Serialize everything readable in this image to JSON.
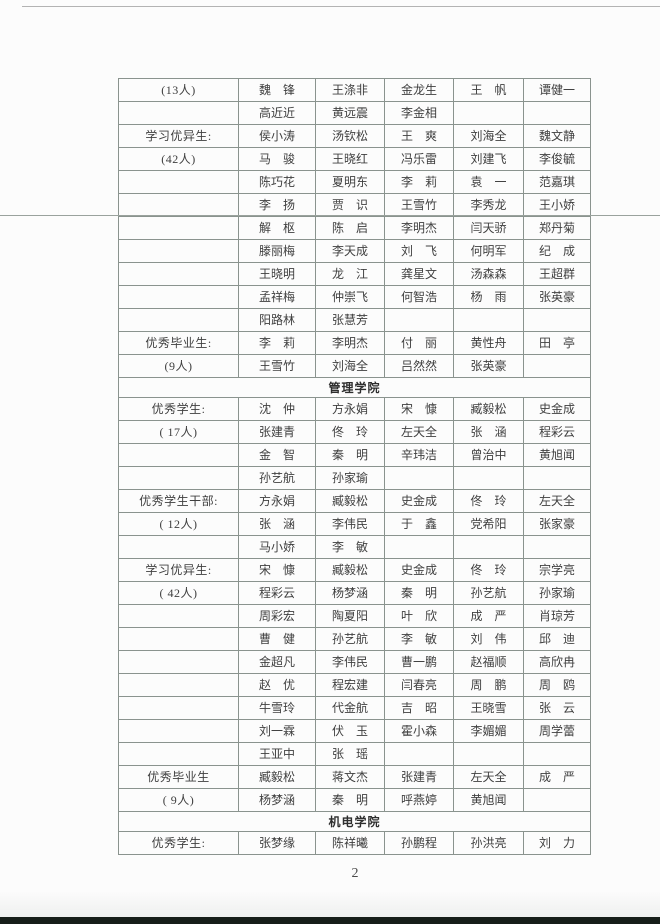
{
  "page": {
    "number": "2"
  },
  "colors": {
    "page_bg": "#fcfcfc",
    "table_border": "#8a938e",
    "text": "#3f3f3f",
    "section_text": "#2e2e2e",
    "artifact_dark": "#161d19"
  },
  "table": {
    "rows": [
      {
        "type": "names",
        "label": "(13人)",
        "cells": [
          "魏　锋",
          "王涤非",
          "金龙生",
          "王　帆",
          "谭健一"
        ]
      },
      {
        "type": "names",
        "label": "",
        "cells": [
          "高近近",
          "黄远震",
          "李金相",
          "",
          ""
        ]
      },
      {
        "type": "names",
        "label": "学习优异生:",
        "cells": [
          "侯小涛",
          "汤钦松",
          "王　爽",
          "刘海全",
          "魏文静"
        ]
      },
      {
        "type": "names",
        "label": "(42人)",
        "cells": [
          "马　骏",
          "王晓红",
          "冯乐雷",
          "刘建飞",
          "李俊毓"
        ]
      },
      {
        "type": "names",
        "label": "",
        "cells": [
          "陈巧花",
          "夏明东",
          "李　莉",
          "袁　一",
          "范嘉琪"
        ]
      },
      {
        "type": "names",
        "label": "",
        "cells": [
          "李　扬",
          "贾　识",
          "王雪竹",
          "李秀龙",
          "王小娇"
        ]
      },
      {
        "type": "names",
        "label": "",
        "cells": [
          "解　枢",
          "陈　启",
          "李明杰",
          "闫天骄",
          "郑丹菊"
        ]
      },
      {
        "type": "names",
        "label": "",
        "cells": [
          "滕丽梅",
          "李天成",
          "刘　飞",
          "何明军",
          "纪　成"
        ]
      },
      {
        "type": "names",
        "label": "",
        "cells": [
          "王晓明",
          "龙　江",
          "龚星文",
          "汤森森",
          "王超群"
        ]
      },
      {
        "type": "names",
        "label": "",
        "cells": [
          "孟祥梅",
          "仲崇飞",
          "何智浩",
          "杨　雨",
          "张英豪"
        ]
      },
      {
        "type": "names",
        "label": "",
        "cells": [
          "阳路林",
          "张慧芳",
          "",
          "",
          ""
        ]
      },
      {
        "type": "names",
        "label": "优秀毕业生:",
        "cells": [
          "李　莉",
          "李明杰",
          "付　丽",
          "黄性舟",
          "田　亭"
        ]
      },
      {
        "type": "names",
        "label": "(9人)",
        "cells": [
          "王雪竹",
          "刘海全",
          "吕然然",
          "张英豪",
          ""
        ]
      },
      {
        "type": "section",
        "title": "管理学院"
      },
      {
        "type": "names",
        "label": "优秀学生:",
        "cells": [
          "沈　仲",
          "方永娟",
          "宋　慷",
          "臧毅松",
          "史金成"
        ]
      },
      {
        "type": "names",
        "label": "( 17人)",
        "cells": [
          "张建青",
          "佟　玲",
          "左天全",
          "张　涵",
          "程彩云"
        ]
      },
      {
        "type": "names",
        "label": "",
        "cells": [
          "金　智",
          "秦　明",
          "辛玮洁",
          "曾治中",
          "黄旭闻"
        ]
      },
      {
        "type": "names",
        "label": "",
        "cells": [
          "孙艺航",
          "孙家瑜",
          "",
          "",
          ""
        ]
      },
      {
        "type": "names",
        "label": "优秀学生干部:",
        "cells": [
          "方永娟",
          "臧毅松",
          "史金成",
          "佟　玲",
          "左天全"
        ]
      },
      {
        "type": "names",
        "label": "( 12人)",
        "cells": [
          "张　涵",
          "李伟民",
          "于　鑫",
          "党希阳",
          "张家豪"
        ]
      },
      {
        "type": "names",
        "label": "",
        "cells": [
          "马小娇",
          "李　敏",
          "",
          "",
          ""
        ]
      },
      {
        "type": "names",
        "label": "学习优异生:",
        "cells": [
          "宋　慷",
          "臧毅松",
          "史金成",
          "佟　玲",
          "宗学亮"
        ]
      },
      {
        "type": "names",
        "label": "( 42人)",
        "cells": [
          "程彩云",
          "杨梦涵",
          "秦　明",
          "孙艺航",
          "孙家瑜"
        ]
      },
      {
        "type": "names",
        "label": "",
        "cells": [
          "周彩宏",
          "陶夏阳",
          "叶　欣",
          "成　严",
          "肖琼芳"
        ]
      },
      {
        "type": "names",
        "label": "",
        "cells": [
          "曹　健",
          "孙艺航",
          "李　敏",
          "刘　伟",
          "邱　迪"
        ]
      },
      {
        "type": "names",
        "label": "",
        "cells": [
          "金超凡",
          "李伟民",
          "曹一鹏",
          "赵福顺",
          "高欣冉"
        ]
      },
      {
        "type": "names",
        "label": "",
        "cells": [
          "赵　优",
          "程宏建",
          "闫春亮",
          "周　鹏",
          "周　鸥"
        ]
      },
      {
        "type": "names",
        "label": "",
        "cells": [
          "牛雪玲",
          "代金航",
          "吉　昭",
          "王晓雪",
          "张　云"
        ]
      },
      {
        "type": "names",
        "label": "",
        "cells": [
          "刘一霖",
          "伏　玉",
          "霍小森",
          "李媚媚",
          "周学蕾"
        ]
      },
      {
        "type": "names",
        "label": "",
        "cells": [
          "王亚中",
          "张　瑶",
          "",
          "",
          ""
        ]
      },
      {
        "type": "names",
        "label": "优秀毕业生",
        "cells": [
          "臧毅松",
          "蒋文杰",
          "张建青",
          "左天全",
          "成　严"
        ]
      },
      {
        "type": "names",
        "label": "( 9人)",
        "cells": [
          "杨梦涵",
          "秦　明",
          "呼燕婷",
          "黄旭闻",
          ""
        ]
      },
      {
        "type": "section",
        "title": "机电学院"
      },
      {
        "type": "names",
        "label": "优秀学生:",
        "cells": [
          "张梦缘",
          "陈祥曦",
          "孙鹏程",
          "孙洪亮",
          "刘　力"
        ]
      }
    ]
  }
}
